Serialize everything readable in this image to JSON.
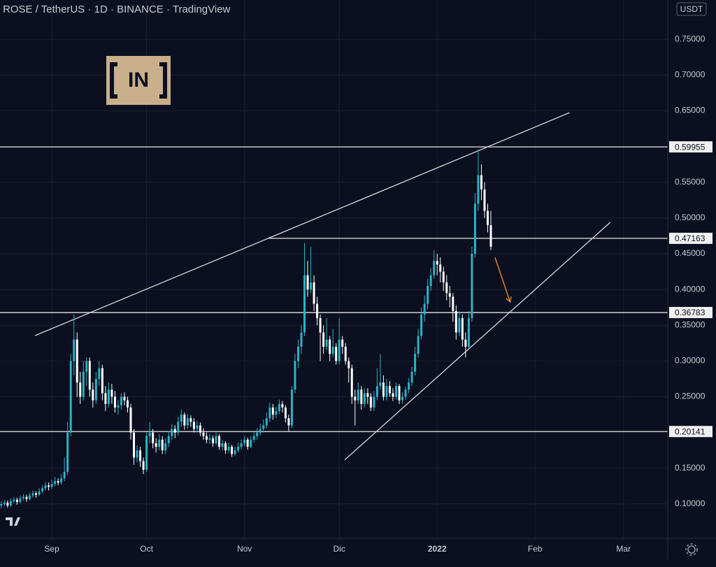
{
  "chart_data": {
    "type": "candlestick",
    "title": "ROSE / TetherUS · 1D · BINANCE · TradingView",
    "currency": "USDT",
    "logo": "IN",
    "up_color": "#2bb3c6",
    "down_color": "#ffffff",
    "grid": true,
    "xlim": [
      -16.4,
      195
    ],
    "ylim": [
      0.052,
      0.805
    ],
    "yticks": [
      {
        "value": 0.1,
        "label": "0.10000"
      },
      {
        "value": 0.15,
        "label": "0.15000"
      },
      {
        "value": 0.2,
        "label": "0.20000"
      },
      {
        "value": 0.25,
        "label": "0.25000"
      },
      {
        "value": 0.3,
        "label": "0.30000"
      },
      {
        "value": 0.35,
        "label": "0.35000"
      },
      {
        "value": 0.4,
        "label": "0.40000"
      },
      {
        "value": 0.45,
        "label": "0.45000"
      },
      {
        "value": 0.5,
        "label": "0.50000"
      },
      {
        "value": 0.55,
        "label": "0.55000"
      },
      {
        "value": 0.6,
        "label": "0.60000"
      },
      {
        "value": 0.65,
        "label": "0.65000"
      },
      {
        "value": 0.7,
        "label": "0.70000"
      },
      {
        "value": 0.75,
        "label": "0.75000"
      }
    ],
    "xticks": [
      {
        "value": 0,
        "label": "Sep"
      },
      {
        "value": 30,
        "label": "Oct"
      },
      {
        "value": 61,
        "label": "Nov"
      },
      {
        "value": 91,
        "label": "Dic"
      },
      {
        "value": 122,
        "label": "2022"
      },
      {
        "value": 153,
        "label": "Feb"
      },
      {
        "value": 181,
        "label": "Mar"
      }
    ],
    "levels": [
      {
        "value": 0.59955,
        "from": -16.4
      },
      {
        "value": 0.47163,
        "from": 68.8
      },
      {
        "value": 0.36783,
        "from": -16.4
      },
      {
        "value": 0.20141,
        "from": -16.4
      }
    ],
    "trendlines": [
      {
        "x": [
          -5.3,
          163.9
        ],
        "y": [
          0.3356,
          0.6474
        ]
      },
      {
        "x": [
          92.7,
          176.8
        ],
        "y": [
          0.1616,
          0.494
        ]
      }
    ],
    "arrow": {
      "x": [
        140.3,
        145.1
      ],
      "y": [
        0.445,
        0.3825
      ],
      "color": "#d9822b"
    },
    "x": [
      -16,
      -15,
      -14,
      -13,
      -12,
      -11,
      -10,
      -9,
      -8,
      -7,
      -6,
      -5,
      -4,
      -3,
      -2,
      -1,
      0,
      1,
      2,
      3,
      4,
      5,
      6,
      7,
      8,
      9,
      10,
      11,
      12,
      13,
      14,
      15,
      16,
      17,
      18,
      19,
      20,
      21,
      22,
      23,
      24,
      25,
      26,
      27,
      28,
      29,
      30,
      31,
      32,
      33,
      34,
      35,
      36,
      37,
      38,
      39,
      40,
      41,
      42,
      43,
      44,
      45,
      46,
      47,
      48,
      49,
      50,
      51,
      52,
      53,
      54,
      55,
      56,
      57,
      58,
      59,
      60,
      61,
      62,
      63,
      64,
      65,
      66,
      67,
      68,
      69,
      70,
      71,
      72,
      73,
      74,
      75,
      76,
      77,
      78,
      79,
      80,
      81,
      82,
      83,
      84,
      85,
      86,
      87,
      88,
      89,
      90,
      91,
      92,
      93,
      94,
      95,
      96,
      97,
      98,
      99,
      100,
      101,
      102,
      103,
      104,
      105,
      106,
      107,
      108,
      109,
      110,
      111,
      112,
      113,
      114,
      115,
      116,
      117,
      118,
      119,
      120,
      121,
      122,
      123,
      124,
      125,
      126,
      127,
      128,
      129,
      130,
      131,
      132,
      133,
      134,
      135,
      136,
      137,
      138,
      139
    ],
    "ohlc": [
      [
        0.098,
        0.104,
        0.094,
        0.1
      ],
      [
        0.1,
        0.106,
        0.097,
        0.102
      ],
      [
        0.102,
        0.105,
        0.095,
        0.098
      ],
      [
        0.098,
        0.108,
        0.096,
        0.104
      ],
      [
        0.104,
        0.11,
        0.101,
        0.106
      ],
      [
        0.106,
        0.109,
        0.099,
        0.103
      ],
      [
        0.103,
        0.112,
        0.101,
        0.108
      ],
      [
        0.108,
        0.114,
        0.105,
        0.11
      ],
      [
        0.11,
        0.113,
        0.103,
        0.107
      ],
      [
        0.107,
        0.116,
        0.105,
        0.112
      ],
      [
        0.112,
        0.119,
        0.109,
        0.115
      ],
      [
        0.115,
        0.118,
        0.109,
        0.113
      ],
      [
        0.113,
        0.122,
        0.111,
        0.118
      ],
      [
        0.118,
        0.126,
        0.115,
        0.122
      ],
      [
        0.122,
        0.131,
        0.119,
        0.126
      ],
      [
        0.126,
        0.13,
        0.119,
        0.124
      ],
      [
        0.124,
        0.134,
        0.121,
        0.128
      ],
      [
        0.128,
        0.138,
        0.125,
        0.132
      ],
      [
        0.132,
        0.136,
        0.126,
        0.13
      ],
      [
        0.13,
        0.142,
        0.127,
        0.136
      ],
      [
        0.136,
        0.165,
        0.132,
        0.145
      ],
      [
        0.145,
        0.215,
        0.14,
        0.2
      ],
      [
        0.2,
        0.31,
        0.195,
        0.3
      ],
      [
        0.3,
        0.365,
        0.28,
        0.33
      ],
      [
        0.33,
        0.34,
        0.25,
        0.27
      ],
      [
        0.27,
        0.285,
        0.24,
        0.25
      ],
      [
        0.25,
        0.3,
        0.245,
        0.285
      ],
      [
        0.285,
        0.305,
        0.265,
        0.3
      ],
      [
        0.3,
        0.305,
        0.25,
        0.26
      ],
      [
        0.26,
        0.27,
        0.235,
        0.245
      ],
      [
        0.245,
        0.285,
        0.24,
        0.275
      ],
      [
        0.275,
        0.3,
        0.265,
        0.29
      ],
      [
        0.29,
        0.295,
        0.245,
        0.255
      ],
      [
        0.255,
        0.265,
        0.23,
        0.24
      ],
      [
        0.24,
        0.27,
        0.235,
        0.26
      ],
      [
        0.26,
        0.268,
        0.24,
        0.25
      ],
      [
        0.25,
        0.258,
        0.228,
        0.235
      ],
      [
        0.235,
        0.245,
        0.225,
        0.238
      ],
      [
        0.238,
        0.255,
        0.232,
        0.25
      ],
      [
        0.25,
        0.256,
        0.238,
        0.245
      ],
      [
        0.245,
        0.25,
        0.228,
        0.235
      ],
      [
        0.235,
        0.24,
        0.19,
        0.2
      ],
      [
        0.2,
        0.205,
        0.155,
        0.165
      ],
      [
        0.165,
        0.182,
        0.158,
        0.175
      ],
      [
        0.175,
        0.18,
        0.152,
        0.16
      ],
      [
        0.16,
        0.165,
        0.142,
        0.148
      ],
      [
        0.148,
        0.2,
        0.145,
        0.195
      ],
      [
        0.195,
        0.215,
        0.185,
        0.2
      ],
      [
        0.2,
        0.205,
        0.178,
        0.185
      ],
      [
        0.185,
        0.192,
        0.172,
        0.18
      ],
      [
        0.18,
        0.198,
        0.175,
        0.19
      ],
      [
        0.19,
        0.195,
        0.17,
        0.175
      ],
      [
        0.175,
        0.192,
        0.17,
        0.185
      ],
      [
        0.185,
        0.202,
        0.18,
        0.195
      ],
      [
        0.195,
        0.212,
        0.19,
        0.205
      ],
      [
        0.205,
        0.21,
        0.192,
        0.2
      ],
      [
        0.2,
        0.222,
        0.196,
        0.215
      ],
      [
        0.215,
        0.232,
        0.208,
        0.225
      ],
      [
        0.225,
        0.228,
        0.204,
        0.21
      ],
      [
        0.21,
        0.226,
        0.205,
        0.22
      ],
      [
        0.22,
        0.224,
        0.208,
        0.215
      ],
      [
        0.215,
        0.22,
        0.2,
        0.205
      ],
      [
        0.205,
        0.216,
        0.2,
        0.21
      ],
      [
        0.21,
        0.214,
        0.195,
        0.2
      ],
      [
        0.2,
        0.206,
        0.19,
        0.195
      ],
      [
        0.195,
        0.2,
        0.185,
        0.19
      ],
      [
        0.19,
        0.198,
        0.184,
        0.192
      ],
      [
        0.192,
        0.196,
        0.18,
        0.185
      ],
      [
        0.185,
        0.2,
        0.182,
        0.195
      ],
      [
        0.195,
        0.198,
        0.176,
        0.18
      ],
      [
        0.18,
        0.19,
        0.175,
        0.185
      ],
      [
        0.185,
        0.188,
        0.17,
        0.175
      ],
      [
        0.175,
        0.186,
        0.171,
        0.18
      ],
      [
        0.18,
        0.183,
        0.166,
        0.17
      ],
      [
        0.17,
        0.18,
        0.167,
        0.175
      ],
      [
        0.175,
        0.186,
        0.172,
        0.18
      ],
      [
        0.18,
        0.19,
        0.176,
        0.185
      ],
      [
        0.185,
        0.195,
        0.181,
        0.19
      ],
      [
        0.19,
        0.193,
        0.176,
        0.18
      ],
      [
        0.18,
        0.195,
        0.178,
        0.19
      ],
      [
        0.19,
        0.2,
        0.186,
        0.195
      ],
      [
        0.195,
        0.206,
        0.19,
        0.2
      ],
      [
        0.2,
        0.212,
        0.196,
        0.205
      ],
      [
        0.205,
        0.218,
        0.2,
        0.21
      ],
      [
        0.21,
        0.228,
        0.206,
        0.22
      ],
      [
        0.22,
        0.242,
        0.215,
        0.235
      ],
      [
        0.235,
        0.24,
        0.218,
        0.225
      ],
      [
        0.225,
        0.236,
        0.22,
        0.23
      ],
      [
        0.23,
        0.246,
        0.226,
        0.24
      ],
      [
        0.24,
        0.244,
        0.228,
        0.235
      ],
      [
        0.235,
        0.238,
        0.214,
        0.22
      ],
      [
        0.22,
        0.225,
        0.202,
        0.21
      ],
      [
        0.21,
        0.265,
        0.206,
        0.26
      ],
      [
        0.26,
        0.31,
        0.255,
        0.3
      ],
      [
        0.3,
        0.33,
        0.29,
        0.32
      ],
      [
        0.32,
        0.35,
        0.31,
        0.34
      ],
      [
        0.34,
        0.465,
        0.335,
        0.42
      ],
      [
        0.42,
        0.44,
        0.39,
        0.4
      ],
      [
        0.4,
        0.46,
        0.395,
        0.41
      ],
      [
        0.41,
        0.42,
        0.37,
        0.38
      ],
      [
        0.38,
        0.39,
        0.35,
        0.36
      ],
      [
        0.36,
        0.365,
        0.3,
        0.34
      ],
      [
        0.34,
        0.35,
        0.31,
        0.32
      ],
      [
        0.32,
        0.36,
        0.315,
        0.33
      ],
      [
        0.33,
        0.335,
        0.3,
        0.31
      ],
      [
        0.31,
        0.345,
        0.305,
        0.32
      ],
      [
        0.32,
        0.325,
        0.295,
        0.3
      ],
      [
        0.3,
        0.36,
        0.295,
        0.33
      ],
      [
        0.33,
        0.335,
        0.31,
        0.32
      ],
      [
        0.32,
        0.325,
        0.295,
        0.3
      ],
      [
        0.3,
        0.305,
        0.27,
        0.29
      ],
      [
        0.29,
        0.295,
        0.24,
        0.25
      ],
      [
        0.25,
        0.26,
        0.21,
        0.245
      ],
      [
        0.245,
        0.27,
        0.24,
        0.26
      ],
      [
        0.26,
        0.265,
        0.232,
        0.24
      ],
      [
        0.24,
        0.262,
        0.235,
        0.255
      ],
      [
        0.255,
        0.262,
        0.24,
        0.25
      ],
      [
        0.25,
        0.255,
        0.23,
        0.235
      ],
      [
        0.235,
        0.258,
        0.23,
        0.25
      ],
      [
        0.25,
        0.29,
        0.245,
        0.265
      ],
      [
        0.265,
        0.31,
        0.26,
        0.27
      ],
      [
        0.27,
        0.28,
        0.245,
        0.25
      ],
      [
        0.25,
        0.275,
        0.245,
        0.265
      ],
      [
        0.265,
        0.272,
        0.25,
        0.255
      ],
      [
        0.255,
        0.262,
        0.244,
        0.25
      ],
      [
        0.25,
        0.27,
        0.246,
        0.265
      ],
      [
        0.265,
        0.268,
        0.24,
        0.245
      ],
      [
        0.245,
        0.256,
        0.24,
        0.25
      ],
      [
        0.25,
        0.264,
        0.246,
        0.26
      ],
      [
        0.26,
        0.276,
        0.255,
        0.27
      ],
      [
        0.27,
        0.292,
        0.265,
        0.285
      ],
      [
        0.285,
        0.32,
        0.28,
        0.31
      ],
      [
        0.31,
        0.345,
        0.305,
        0.335
      ],
      [
        0.335,
        0.375,
        0.33,
        0.365
      ],
      [
        0.365,
        0.392,
        0.355,
        0.38
      ],
      [
        0.38,
        0.415,
        0.372,
        0.405
      ],
      [
        0.405,
        0.43,
        0.398,
        0.42
      ],
      [
        0.42,
        0.455,
        0.415,
        0.44
      ],
      [
        0.44,
        0.45,
        0.42,
        0.435
      ],
      [
        0.435,
        0.445,
        0.41,
        0.425
      ],
      [
        0.425,
        0.432,
        0.398,
        0.41
      ],
      [
        0.41,
        0.42,
        0.385,
        0.395
      ],
      [
        0.395,
        0.405,
        0.375,
        0.39
      ],
      [
        0.39,
        0.395,
        0.355,
        0.37
      ],
      [
        0.37,
        0.378,
        0.33,
        0.34
      ],
      [
        0.34,
        0.37,
        0.335,
        0.36
      ],
      [
        0.36,
        0.365,
        0.32,
        0.33
      ],
      [
        0.33,
        0.34,
        0.305,
        0.32
      ],
      [
        0.32,
        0.37,
        0.315,
        0.36
      ],
      [
        0.36,
        0.46,
        0.355,
        0.45
      ],
      [
        0.45,
        0.535,
        0.445,
        0.52
      ],
      [
        0.52,
        0.596,
        0.51,
        0.56
      ],
      [
        0.56,
        0.575,
        0.525,
        0.54
      ],
      [
        0.54,
        0.55,
        0.5,
        0.51
      ],
      [
        0.51,
        0.52,
        0.48,
        0.49
      ],
      [
        0.49,
        0.51,
        0.455,
        0.46
      ]
    ]
  }
}
